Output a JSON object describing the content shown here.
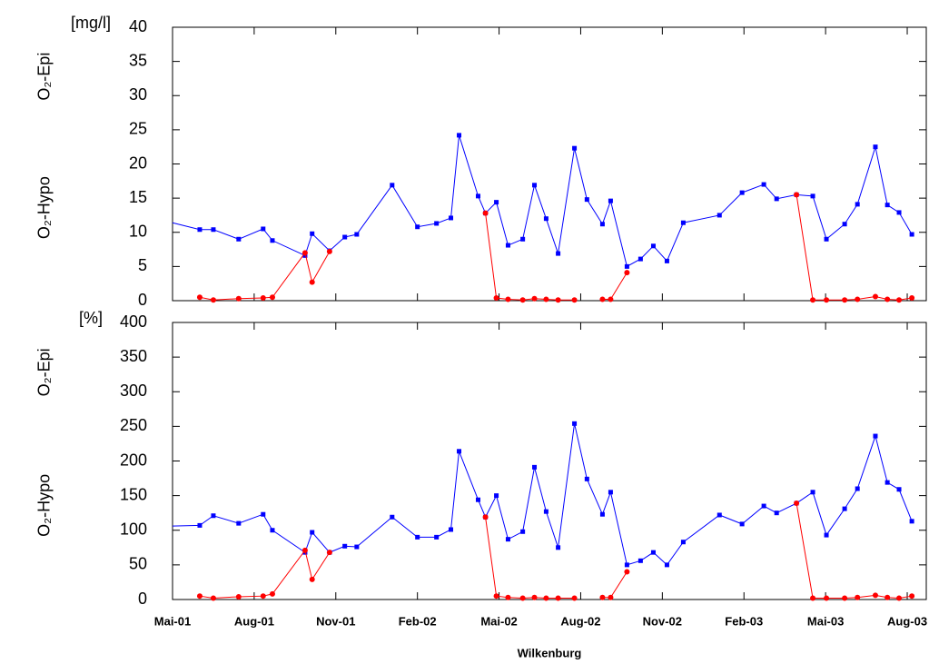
{
  "chart_data": [
    {
      "type": "line",
      "y_label": "[mg/l]",
      "x": [
        0,
        1.0,
        1.5,
        2.43,
        3.33,
        3.67,
        4.87,
        5.13,
        5.77,
        6.33,
        6.77,
        8.07,
        9.0,
        9.7,
        10.23,
        10.53,
        11.23,
        11.5,
        11.9,
        12.33,
        12.87,
        13.3,
        13.73,
        14.17,
        14.77,
        15.23,
        15.8,
        16.1,
        16.7,
        17.2,
        17.67,
        18.17,
        18.77,
        20.1,
        20.93,
        21.73,
        22.2,
        22.93,
        23.53,
        24.03,
        24.7,
        25.17,
        25.83,
        26.27,
        26.7,
        27.17
      ],
      "series": [
        {
          "name": "O₂-Epi",
          "color": "#0000ff",
          "values": [
            11.4,
            10.4,
            10.4,
            9.0,
            10.5,
            8.8,
            6.6,
            9.8,
            7.3,
            9.3,
            9.7,
            16.9,
            10.8,
            11.3,
            12.1,
            24.2,
            15.3,
            12.8,
            14.4,
            8.1,
            9.0,
            16.9,
            12.0,
            6.9,
            22.3,
            14.8,
            11.2,
            14.6,
            5.0,
            6.1,
            8.0,
            5.8,
            11.4,
            12.5,
            15.8,
            17.0,
            14.9,
            15.5,
            15.3,
            9.0,
            11.2,
            14.1,
            22.5,
            14.0,
            12.9,
            9.7
          ]
        },
        {
          "name": "O₂-Hypo",
          "color": "#ff0000",
          "values": [
            null,
            0.5,
            0.1,
            0.3,
            0.4,
            0.5,
            7.0,
            2.7,
            7.2,
            null,
            null,
            null,
            null,
            null,
            null,
            null,
            null,
            12.8,
            0.4,
            0.2,
            0.1,
            0.3,
            0.2,
            0.1,
            0.1,
            null,
            0.2,
            0.2,
            4.1,
            null,
            null,
            null,
            null,
            null,
            null,
            null,
            null,
            15.5,
            0.1,
            0.1,
            0.1,
            0.2,
            0.6,
            0.2,
            0.1,
            0.4
          ]
        }
      ],
      "xlim": [
        0,
        27.7
      ],
      "xticks": [
        0,
        3,
        6,
        9,
        12,
        15,
        18,
        21,
        24,
        27
      ],
      "ylim": [
        0,
        40
      ],
      "yticks": [
        0,
        5,
        10,
        15,
        20,
        25,
        30,
        35,
        40
      ]
    },
    {
      "type": "line",
      "y_label": "[%]",
      "x_label": "Wilkenburg",
      "x": [
        0,
        1.0,
        1.5,
        2.43,
        3.33,
        3.67,
        4.87,
        5.13,
        5.77,
        6.33,
        6.77,
        8.07,
        9.0,
        9.7,
        10.23,
        10.53,
        11.23,
        11.5,
        11.9,
        12.33,
        12.87,
        13.3,
        13.73,
        14.17,
        14.77,
        15.23,
        15.8,
        16.1,
        16.7,
        17.2,
        17.67,
        18.17,
        18.77,
        20.1,
        20.93,
        21.73,
        22.2,
        22.93,
        23.53,
        24.03,
        24.7,
        25.17,
        25.83,
        26.27,
        26.7,
        27.17
      ],
      "series": [
        {
          "name": "O₂-Epi",
          "color": "#0000ff",
          "values": [
            106,
            107,
            121,
            110,
            123,
            100,
            68,
            97,
            68,
            77,
            76,
            119,
            90,
            90,
            101,
            214,
            144,
            119,
            150,
            87,
            98,
            191,
            127,
            75,
            254,
            174,
            123,
            155,
            50,
            56,
            68,
            50,
            83,
            122,
            109,
            135,
            125,
            139,
            155,
            93,
            131,
            160,
            236,
            169,
            159,
            113
          ]
        },
        {
          "name": "O₂-Hypo",
          "color": "#ff0000",
          "values": [
            null,
            5,
            2,
            4,
            5,
            8,
            71,
            29,
            68,
            null,
            null,
            null,
            null,
            null,
            null,
            null,
            null,
            119,
            5,
            3,
            2,
            3,
            2,
            2,
            2,
            null,
            3,
            3,
            40,
            null,
            null,
            null,
            null,
            null,
            null,
            null,
            null,
            139,
            2,
            2,
            2,
            3,
            6,
            3,
            2,
            5
          ]
        }
      ],
      "xlim": [
        0,
        27.7
      ],
      "xticks": [
        {
          "value": 0,
          "label": "Mai-01"
        },
        {
          "value": 3,
          "label": "Aug-01"
        },
        {
          "value": 6,
          "label": "Nov-01"
        },
        {
          "value": 9,
          "label": "Feb-02"
        },
        {
          "value": 12,
          "label": "Mai-02"
        },
        {
          "value": 15,
          "label": "Aug-02"
        },
        {
          "value": 18,
          "label": "Nov-02"
        },
        {
          "value": 21,
          "label": "Feb-03"
        },
        {
          "value": 24,
          "label": "Mai-03"
        },
        {
          "value": 27,
          "label": "Aug-03"
        }
      ],
      "ylim": [
        0,
        400
      ],
      "yticks": [
        0,
        50,
        100,
        150,
        200,
        250,
        300,
        350,
        400
      ]
    }
  ]
}
